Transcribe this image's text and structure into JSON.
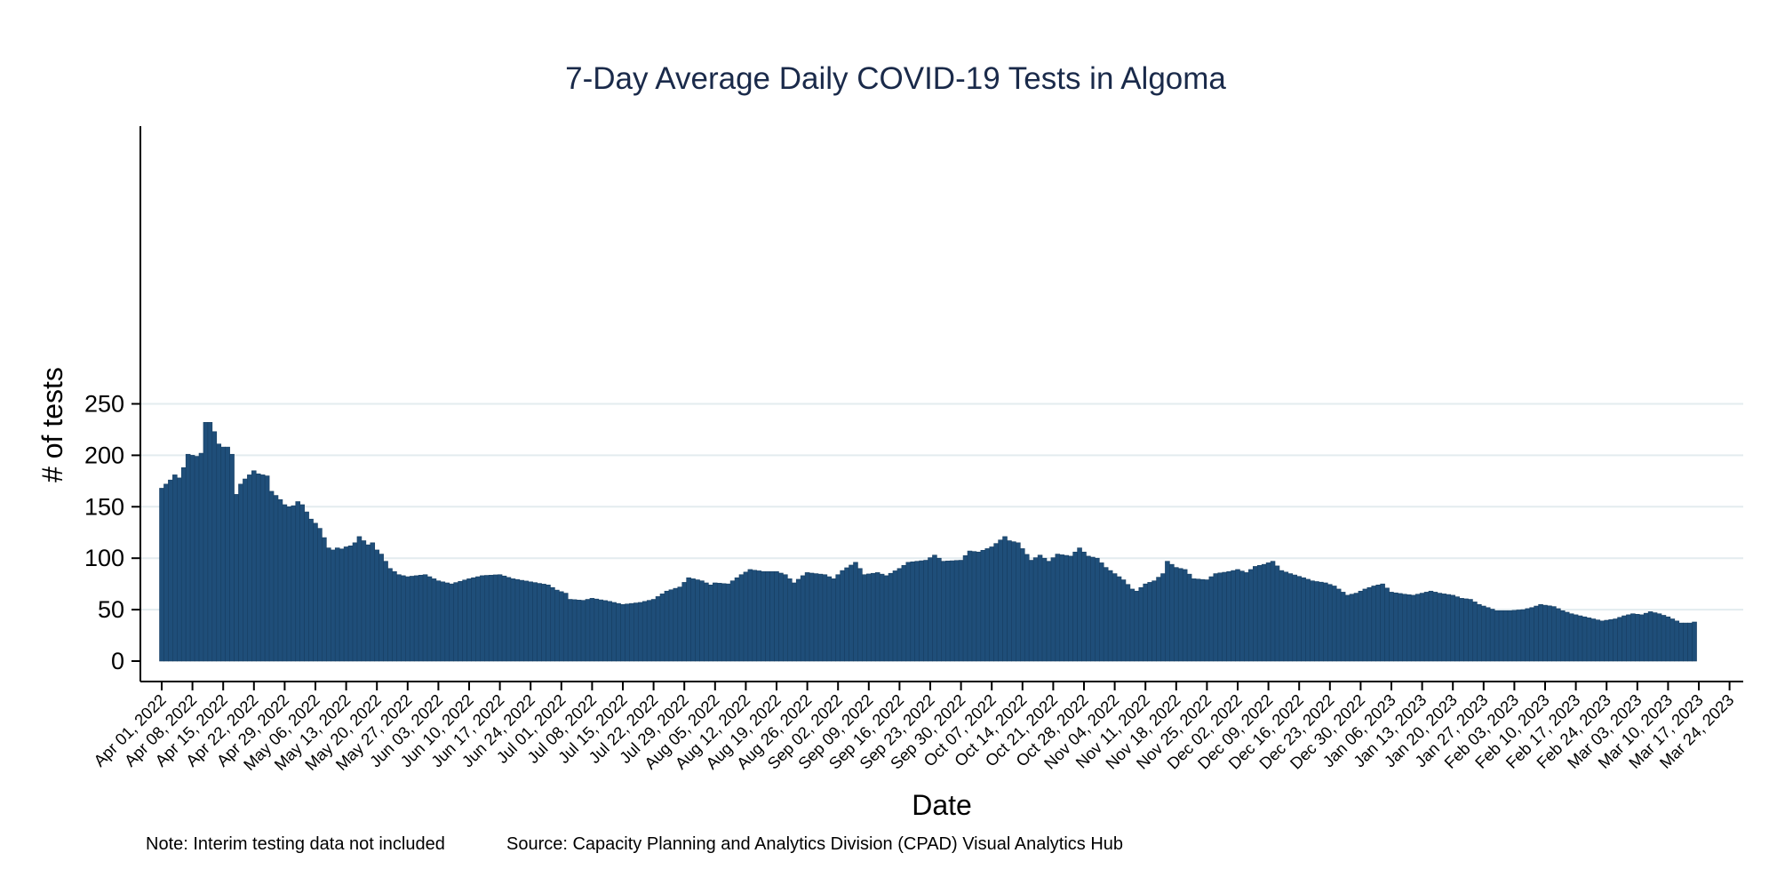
{
  "chart_data": {
    "type": "bar",
    "title": "7-Day Average Daily COVID-19 Tests in Algoma",
    "xlabel": "Date",
    "ylabel": "# of tests",
    "ylim": [
      0,
      260
    ],
    "yticks": [
      0,
      50,
      100,
      150,
      200,
      250
    ],
    "grid": true,
    "legend": "none",
    "bar_color": "#1f4e79",
    "start_date": "2022-04-01",
    "x_tick_labels": [
      "Apr 01, 2022",
      "Apr 08, 2022",
      "Apr 15, 2022",
      "Apr 22, 2022",
      "Apr 29, 2022",
      "May 06, 2022",
      "May 13, 2022",
      "May 20, 2022",
      "May 27, 2022",
      "Jun 03, 2022",
      "Jun 10, 2022",
      "Jun 17, 2022",
      "Jun 24, 2022",
      "Jul 01, 2022",
      "Jul 08, 2022",
      "Jul 15, 2022",
      "Jul 22, 2022",
      "Jul 29, 2022",
      "Aug 05, 2022",
      "Aug 12, 2022",
      "Aug 19, 2022",
      "Aug 26, 2022",
      "Sep 02, 2022",
      "Sep 09, 2022",
      "Sep 16, 2022",
      "Sep 23, 2022",
      "Sep 30, 2022",
      "Oct 07, 2022",
      "Oct 14, 2022",
      "Oct 21, 2022",
      "Oct 28, 2022",
      "Nov 04, 2022",
      "Nov 11, 2022",
      "Nov 18, 2022",
      "Nov 25, 2022",
      "Dec 02, 2022",
      "Dec 09, 2022",
      "Dec 16, 2022",
      "Dec 23, 2022",
      "Dec 30, 2022",
      "Jan 06, 2023",
      "Jan 13, 2023",
      "Jan 20, 2023",
      "Jan 27, 2023",
      "Feb 03, 2023",
      "Feb 10, 2023",
      "Feb 17, 2023",
      "Feb 24, 2023",
      "Mar 03, 2023",
      "Mar 10, 2023",
      "Mar 17, 2023",
      "Mar 24, 2023"
    ],
    "anchors": [
      [
        "2022-04-01",
        168
      ],
      [
        "2022-04-02",
        172
      ],
      [
        "2022-04-03",
        176
      ],
      [
        "2022-04-04",
        181
      ],
      [
        "2022-04-05",
        178
      ],
      [
        "2022-04-06",
        188
      ],
      [
        "2022-04-07",
        201
      ],
      [
        "2022-04-08",
        200
      ],
      [
        "2022-04-09",
        199
      ],
      [
        "2022-04-10",
        202
      ],
      [
        "2022-04-11",
        232
      ],
      [
        "2022-04-12",
        232
      ],
      [
        "2022-04-13",
        223
      ],
      [
        "2022-04-14",
        211
      ],
      [
        "2022-04-15",
        208
      ],
      [
        "2022-04-16",
        208
      ],
      [
        "2022-04-17",
        201
      ],
      [
        "2022-04-18",
        162
      ],
      [
        "2022-04-19",
        172
      ],
      [
        "2022-04-20",
        177
      ],
      [
        "2022-04-21",
        181
      ],
      [
        "2022-04-22",
        185
      ],
      [
        "2022-04-23",
        182
      ],
      [
        "2022-04-24",
        181
      ],
      [
        "2022-04-25",
        180
      ],
      [
        "2022-04-26",
        165
      ],
      [
        "2022-04-27",
        161
      ],
      [
        "2022-04-28",
        157
      ],
      [
        "2022-04-29",
        152
      ],
      [
        "2022-04-30",
        150
      ],
      [
        "2022-05-01",
        151
      ],
      [
        "2022-05-02",
        155
      ],
      [
        "2022-05-03",
        152
      ],
      [
        "2022-05-04",
        145
      ],
      [
        "2022-05-05",
        138
      ],
      [
        "2022-05-06",
        134
      ],
      [
        "2022-05-07",
        129
      ],
      [
        "2022-05-08",
        120
      ],
      [
        "2022-05-09",
        110
      ],
      [
        "2022-05-10",
        108
      ],
      [
        "2022-05-11",
        110
      ],
      [
        "2022-05-12",
        109
      ],
      [
        "2022-05-13",
        111
      ],
      [
        "2022-05-14",
        112
      ],
      [
        "2022-05-15",
        115
      ],
      [
        "2022-05-16",
        121
      ],
      [
        "2022-05-17",
        117
      ],
      [
        "2022-05-18",
        113
      ],
      [
        "2022-05-19",
        115
      ],
      [
        "2022-05-20",
        108
      ],
      [
        "2022-05-21",
        104
      ],
      [
        "2022-05-23",
        90
      ],
      [
        "2022-05-25",
        84
      ],
      [
        "2022-05-27",
        82
      ],
      [
        "2022-05-31",
        84
      ],
      [
        "2022-06-03",
        78
      ],
      [
        "2022-06-06",
        75
      ],
      [
        "2022-06-10",
        80
      ],
      [
        "2022-06-13",
        83
      ],
      [
        "2022-06-17",
        84
      ],
      [
        "2022-06-20",
        80
      ],
      [
        "2022-06-24",
        77
      ],
      [
        "2022-06-28",
        74
      ],
      [
        "2022-06-30",
        69
      ],
      [
        "2022-07-02",
        66
      ],
      [
        "2022-07-03",
        60
      ],
      [
        "2022-07-06",
        59
      ],
      [
        "2022-07-08",
        61
      ],
      [
        "2022-07-12",
        58
      ],
      [
        "2022-07-15",
        55
      ],
      [
        "2022-07-19",
        57
      ],
      [
        "2022-07-22",
        60
      ],
      [
        "2022-07-25",
        68
      ],
      [
        "2022-07-28",
        72
      ],
      [
        "2022-07-30",
        81
      ],
      [
        "2022-08-02",
        78
      ],
      [
        "2022-08-04",
        74
      ],
      [
        "2022-08-05",
        76
      ],
      [
        "2022-08-08",
        75
      ],
      [
        "2022-08-11",
        84
      ],
      [
        "2022-08-13",
        89
      ],
      [
        "2022-08-16",
        87
      ],
      [
        "2022-08-19",
        87
      ],
      [
        "2022-08-21",
        84
      ],
      [
        "2022-08-23",
        76
      ],
      [
        "2022-08-25",
        83
      ],
      [
        "2022-08-26",
        86
      ],
      [
        "2022-08-28",
        85
      ],
      [
        "2022-08-30",
        84
      ],
      [
        "2022-09-01",
        80
      ],
      [
        "2022-09-03",
        88
      ],
      [
        "2022-09-06",
        96
      ],
      [
        "2022-09-08",
        84
      ],
      [
        "2022-09-11",
        86
      ],
      [
        "2022-09-13",
        83
      ],
      [
        "2022-09-16",
        90
      ],
      [
        "2022-09-18",
        96
      ],
      [
        "2022-09-22",
        98
      ],
      [
        "2022-09-24",
        103
      ],
      [
        "2022-09-26",
        97
      ],
      [
        "2022-09-30",
        98
      ],
      [
        "2022-10-02",
        107
      ],
      [
        "2022-10-04",
        106
      ],
      [
        "2022-10-07",
        111
      ],
      [
        "2022-10-10",
        121
      ],
      [
        "2022-10-11",
        117
      ],
      [
        "2022-10-13",
        115
      ],
      [
        "2022-10-16",
        98
      ],
      [
        "2022-10-18",
        103
      ],
      [
        "2022-10-20",
        97
      ],
      [
        "2022-10-22",
        104
      ],
      [
        "2022-10-25",
        102
      ],
      [
        "2022-10-27",
        110
      ],
      [
        "2022-10-29",
        102
      ],
      [
        "2022-10-31",
        100
      ],
      [
        "2022-11-02",
        91
      ],
      [
        "2022-11-04",
        85
      ],
      [
        "2022-11-06",
        79
      ],
      [
        "2022-11-08",
        70
      ],
      [
        "2022-11-09",
        68
      ],
      [
        "2022-11-11",
        75
      ],
      [
        "2022-11-13",
        78
      ],
      [
        "2022-11-15",
        85
      ],
      [
        "2022-11-16",
        97
      ],
      [
        "2022-11-18",
        91
      ],
      [
        "2022-11-20",
        89
      ],
      [
        "2022-11-22",
        80
      ],
      [
        "2022-11-25",
        79
      ],
      [
        "2022-11-27",
        85
      ],
      [
        "2022-11-30",
        87
      ],
      [
        "2022-12-02",
        89
      ],
      [
        "2022-12-04",
        86
      ],
      [
        "2022-12-06",
        92
      ],
      [
        "2022-12-08",
        94
      ],
      [
        "2022-12-10",
        97
      ],
      [
        "2022-12-12",
        88
      ],
      [
        "2022-12-14",
        85
      ],
      [
        "2022-12-17",
        81
      ],
      [
        "2022-12-19",
        78
      ],
      [
        "2022-12-22",
        76
      ],
      [
        "2022-12-24",
        73
      ],
      [
        "2022-12-27",
        64
      ],
      [
        "2022-12-29",
        66
      ],
      [
        "2022-12-31",
        70
      ],
      [
        "2023-01-02",
        73
      ],
      [
        "2023-01-04",
        75
      ],
      [
        "2023-01-06",
        67
      ],
      [
        "2023-01-09",
        65
      ],
      [
        "2023-01-11",
        64
      ],
      [
        "2023-01-13",
        66
      ],
      [
        "2023-01-15",
        68
      ],
      [
        "2023-01-17",
        66
      ],
      [
        "2023-01-20",
        64
      ],
      [
        "2023-01-22",
        61
      ],
      [
        "2023-01-24",
        60
      ],
      [
        "2023-01-26",
        55
      ],
      [
        "2023-01-28",
        52
      ],
      [
        "2023-01-30",
        49
      ],
      [
        "2023-02-02",
        49
      ],
      [
        "2023-02-05",
        50
      ],
      [
        "2023-02-07",
        52
      ],
      [
        "2023-02-09",
        55
      ],
      [
        "2023-02-12",
        53
      ],
      [
        "2023-02-14",
        49
      ],
      [
        "2023-02-16",
        46
      ],
      [
        "2023-02-19",
        43
      ],
      [
        "2023-02-21",
        41
      ],
      [
        "2023-02-23",
        39
      ],
      [
        "2023-02-26",
        41
      ],
      [
        "2023-02-28",
        44
      ],
      [
        "2023-03-02",
        46
      ],
      [
        "2023-03-04",
        45
      ],
      [
        "2023-03-06",
        48
      ],
      [
        "2023-03-08",
        46
      ],
      [
        "2023-03-10",
        43
      ],
      [
        "2023-03-12",
        39
      ],
      [
        "2023-03-13",
        37
      ],
      [
        "2023-03-15",
        37
      ],
      [
        "2023-03-16",
        38
      ]
    ]
  },
  "footer": {
    "note": "Note: Interim testing data not included",
    "source": "Source: Capacity Planning and Analytics Division (CPAD) Visual Analytics Hub"
  }
}
